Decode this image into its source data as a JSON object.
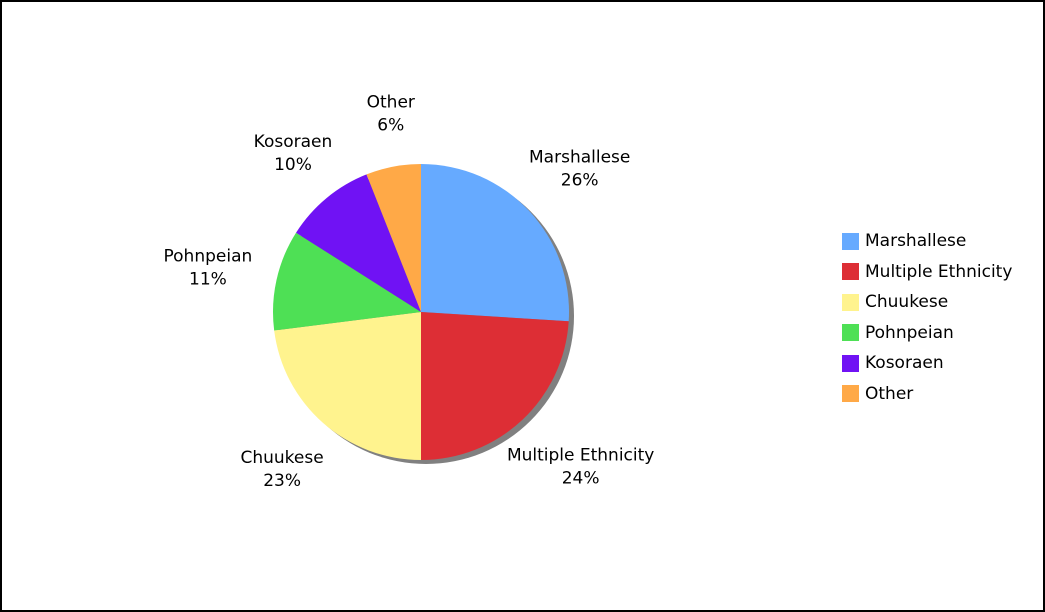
{
  "chart_data": {
    "type": "pie",
    "title": "",
    "legend_position": "right",
    "start_angle_deg": 0,
    "direction": "clockwise",
    "slices": [
      {
        "label": "Marshallese",
        "value": 26,
        "value_label": "26%",
        "color": "#66AAFF"
      },
      {
        "label": "Multiple Ethnicity",
        "value": 24,
        "value_label": "24%",
        "color": "#DD2E35"
      },
      {
        "label": "Chuukese",
        "value": 23,
        "value_label": "23%",
        "color": "#FFF38E"
      },
      {
        "label": "Pohnpeian",
        "value": 11,
        "value_label": "11%",
        "color": "#4EE055"
      },
      {
        "label": "Kosoraen",
        "value": 10,
        "value_label": "10%",
        "color": "#7012F4"
      },
      {
        "label": "Other",
        "value": 6,
        "value_label": "6%",
        "color": "#FFA947"
      }
    ]
  }
}
